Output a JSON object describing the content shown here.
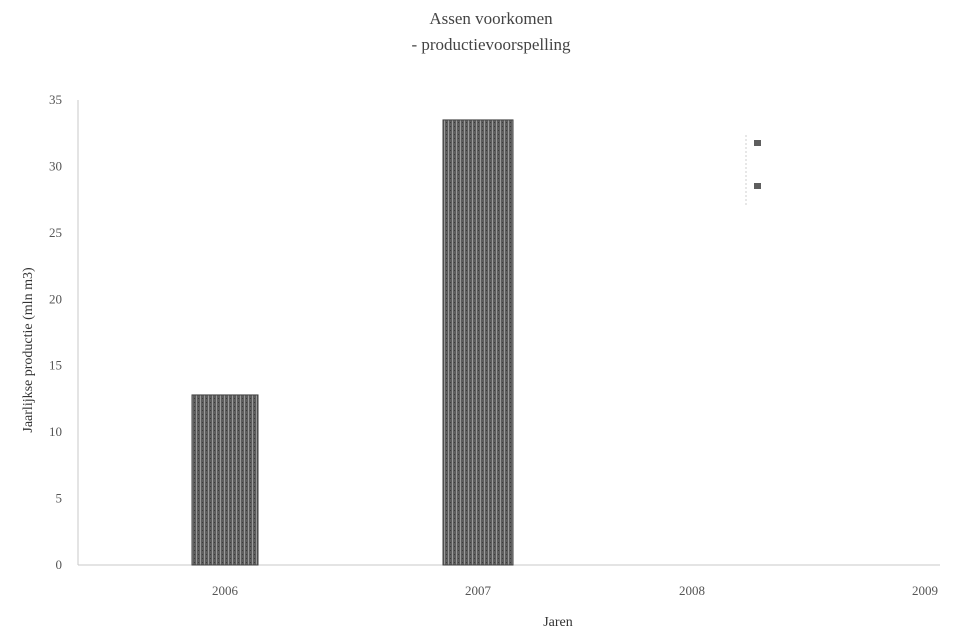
{
  "chart_data": {
    "type": "bar",
    "title": [
      "Assen voorkomen",
      "- productievoorspelling"
    ],
    "xlabel": "Jaren",
    "ylabel": "Jaarlijkse productie (mln m3)",
    "categories": [
      "2006",
      "2007",
      "2008",
      "2009"
    ],
    "series": [
      {
        "name": "",
        "values": [
          12.8,
          33.5,
          null,
          null
        ]
      }
    ],
    "y_ticks": [
      "0",
      "5",
      "10",
      "15",
      "20",
      "25",
      "30",
      "35"
    ],
    "ylim": [
      0,
      35
    ],
    "legend": [
      "",
      ""
    ],
    "legend_position": "right",
    "grid": false,
    "colors": {
      "bar": "#5e5e5e",
      "bar_light": "#9a9a9a",
      "axis": "#bdbdbd"
    }
  }
}
